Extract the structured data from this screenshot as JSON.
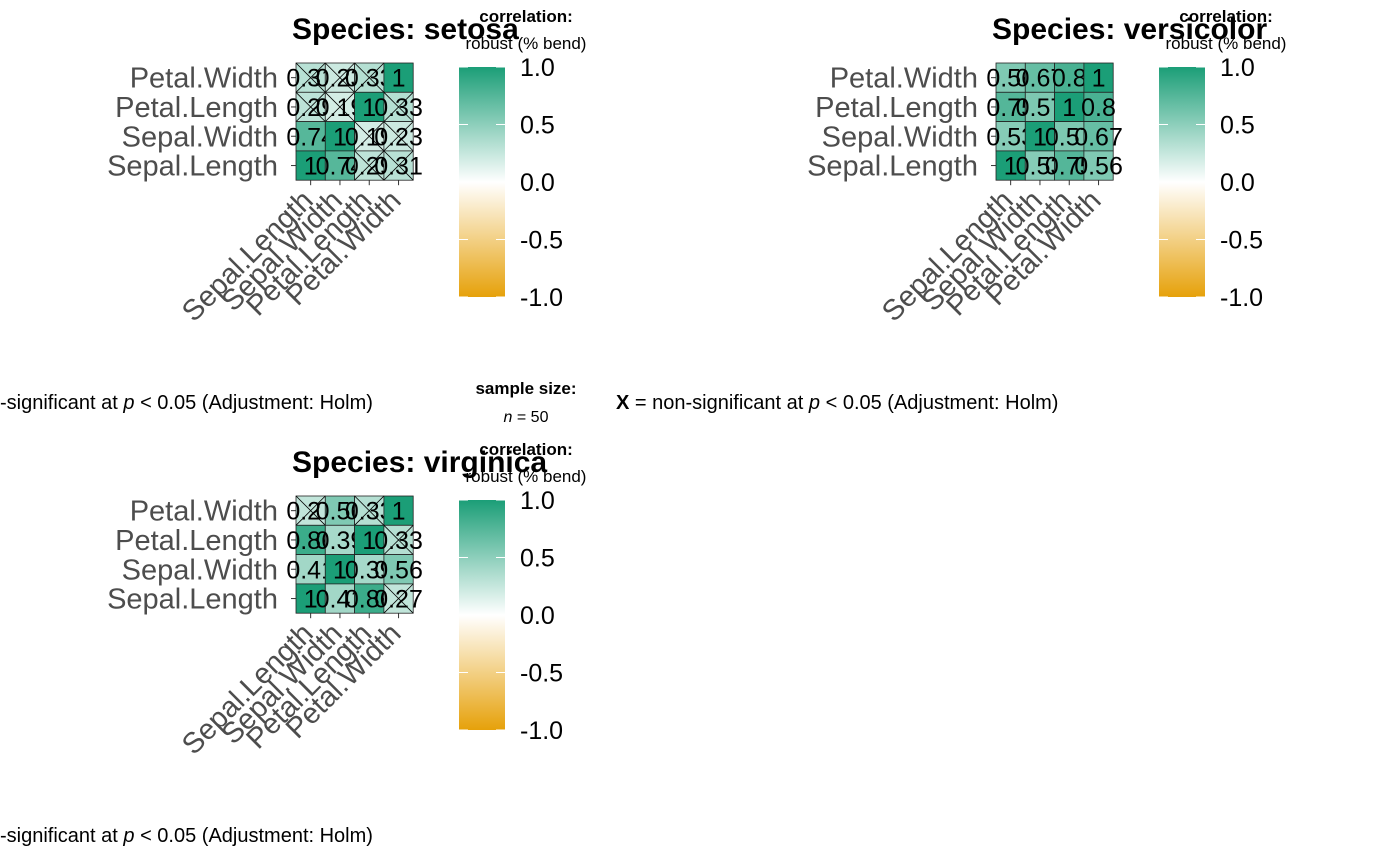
{
  "figure": {
    "caption_prefix": "-significant at ",
    "caption_full_prefix": "X",
    "caption_mid": " = non-significant at ",
    "caption_p": "p",
    "caption_suffix": " < 0.05 (Adjustment: Holm)",
    "sample_size_title": "sample size:",
    "sample_size_n": "n",
    "sample_size_value": " = 50"
  },
  "legend": {
    "title": "correlation:",
    "subtitle": "robust (% bend)",
    "ticks": [
      "1.0",
      "0.5",
      "0.0",
      "-0.5",
      "-1.0"
    ],
    "tick_values": [
      1.0,
      0.5,
      0.0,
      -0.5,
      -1.0
    ],
    "colors": {
      "high": "#1B9E77",
      "mid": "#FFFFFF",
      "low": "#E6A10A"
    }
  },
  "chart_data": [
    {
      "type": "heatmap",
      "title": "Species: setosa",
      "variables": [
        "Sepal.Length",
        "Sepal.Width",
        "Petal.Length",
        "Petal.Width"
      ],
      "xlabel": "",
      "ylabel": "",
      "color_range": [
        -1,
        1
      ],
      "cell_labels": [
        [
          "1",
          "0.74",
          "0.29",
          "0.31"
        ],
        [
          "0.74",
          "1",
          "0.19",
          "0.23"
        ],
        [
          "0.29",
          "0.19",
          "1",
          "0.33"
        ],
        [
          "0.31",
          "0.23",
          "0.33",
          "1"
        ]
      ],
      "values": [
        [
          1.0,
          0.74,
          0.29,
          0.31
        ],
        [
          0.74,
          1.0,
          0.19,
          0.23
        ],
        [
          0.29,
          0.19,
          1.0,
          0.33
        ],
        [
          0.31,
          0.23,
          0.33,
          1.0
        ]
      ],
      "nonsignificant": [
        [
          0,
          2
        ],
        [
          2,
          0
        ],
        [
          0,
          3
        ],
        [
          3,
          0
        ],
        [
          1,
          2
        ],
        [
          2,
          1
        ],
        [
          1,
          3
        ],
        [
          3,
          1
        ],
        [
          2,
          3
        ],
        [
          3,
          2
        ]
      ]
    },
    {
      "type": "heatmap",
      "title": "Species: versicolor",
      "variables": [
        "Sepal.Length",
        "Sepal.Width",
        "Petal.Length",
        "Petal.Width"
      ],
      "xlabel": "",
      "ylabel": "",
      "color_range": [
        -1,
        1
      ],
      "cell_labels": [
        [
          "1",
          "0.53",
          "0.75",
          "0.56"
        ],
        [
          "0.53",
          "1",
          "0.57",
          "0.67"
        ],
        [
          "0.75",
          "0.57",
          "1",
          "0.8"
        ],
        [
          "0.56",
          "0.67",
          "0.8",
          "1"
        ]
      ],
      "values": [
        [
          1.0,
          0.53,
          0.75,
          0.56
        ],
        [
          0.53,
          1.0,
          0.57,
          0.67
        ],
        [
          0.75,
          0.57,
          1.0,
          0.8
        ],
        [
          0.56,
          0.67,
          0.8,
          1.0
        ]
      ],
      "nonsignificant": []
    },
    {
      "type": "heatmap",
      "title": "Species: virginica",
      "variables": [
        "Sepal.Length",
        "Sepal.Width",
        "Petal.Length",
        "Petal.Width"
      ],
      "xlabel": "",
      "ylabel": "",
      "color_range": [
        -1,
        1
      ],
      "cell_labels": [
        [
          "1",
          "0.41",
          "0.86",
          "0.27"
        ],
        [
          "0.41",
          "1",
          "0.39",
          "0.56"
        ],
        [
          "0.86",
          "0.39",
          "1",
          "0.33"
        ],
        [
          "0.27",
          "0.56",
          "0.33",
          "1"
        ]
      ],
      "values": [
        [
          1.0,
          0.41,
          0.86,
          0.27
        ],
        [
          0.41,
          1.0,
          0.39,
          0.56
        ],
        [
          0.86,
          0.39,
          1.0,
          0.33
        ],
        [
          0.27,
          0.56,
          0.33,
          1.0
        ]
      ],
      "nonsignificant": [
        [
          0,
          3
        ],
        [
          3,
          0
        ],
        [
          2,
          3
        ],
        [
          3,
          2
        ]
      ]
    }
  ]
}
